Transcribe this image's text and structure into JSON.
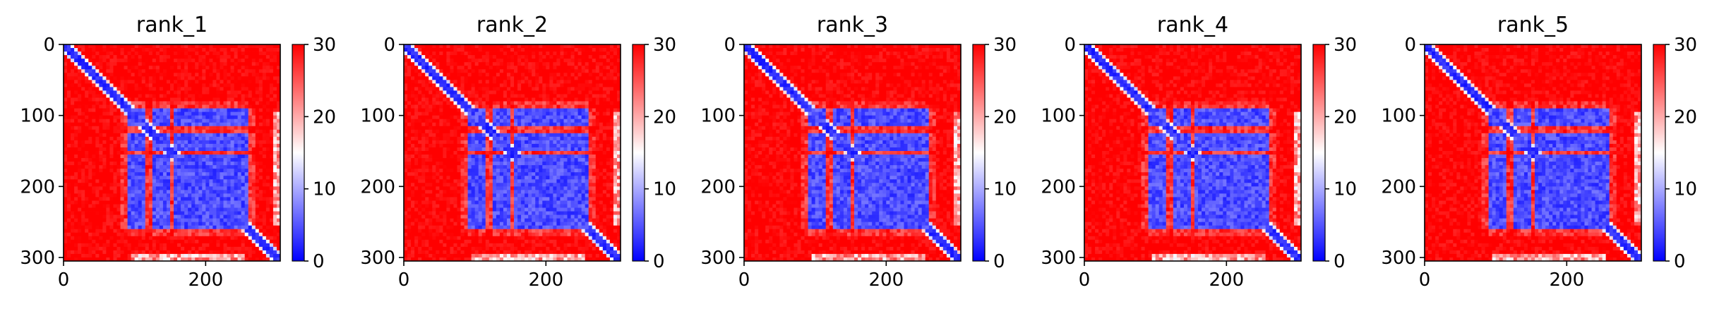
{
  "chart_data": {
    "type": "heatmap",
    "colormap": {
      "name": "bwr",
      "low": "#0000ff",
      "mid": "#ffffff",
      "high": "#ff0000"
    },
    "matrix_size": 305,
    "value_range": [
      0,
      30
    ],
    "xlim": [
      0,
      305
    ],
    "ylim": [
      305,
      0
    ],
    "x_ticks": [
      0,
      200
    ],
    "y_ticks": [
      0,
      100,
      200,
      300
    ],
    "colorbar_ticks": [
      0,
      10,
      20,
      30
    ],
    "description_of_structure": {
      "diagonal_band": "low values along the main diagonal",
      "domain_blocks_rows": [
        [
          88,
          110
        ],
        [
          125,
          145
        ],
        [
          155,
          180
        ],
        [
          185,
          255
        ]
      ],
      "domain_blocks_cols": [
        [
          88,
          110
        ],
        [
          125,
          145
        ],
        [
          155,
          180
        ],
        [
          185,
          255
        ]
      ],
      "edge_bands": [
        [
          295,
          305
        ]
      ]
    },
    "panels": [
      {
        "title": "rank_1"
      },
      {
        "title": "rank_2"
      },
      {
        "title": "rank_3"
      },
      {
        "title": "rank_4"
      },
      {
        "title": "rank_5"
      }
    ]
  }
}
